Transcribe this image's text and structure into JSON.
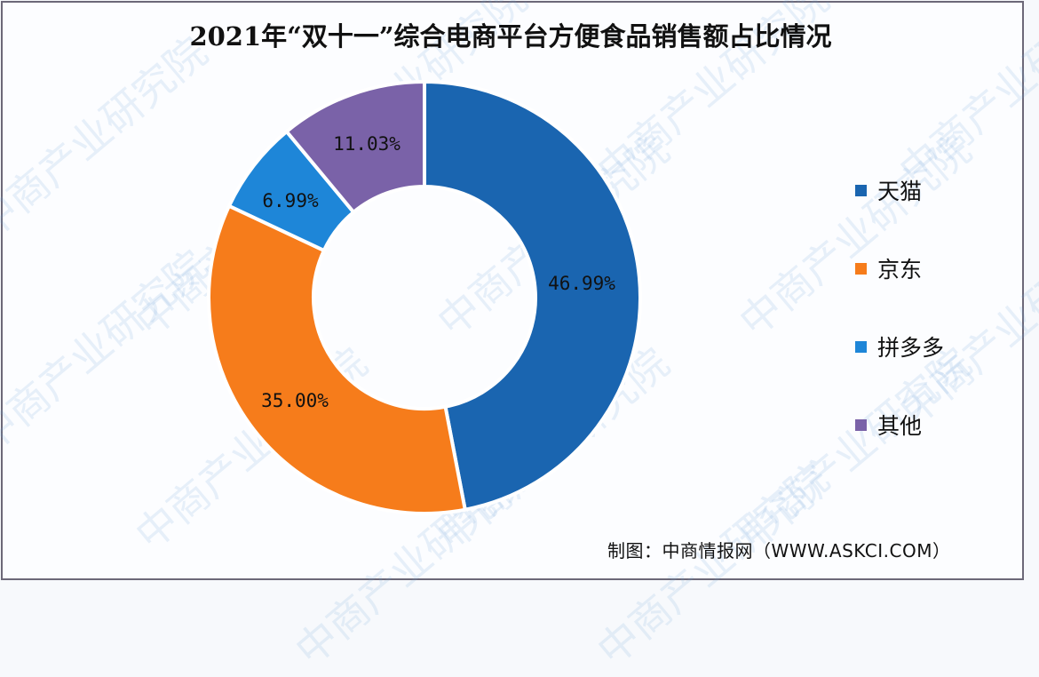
{
  "chart_data": {
    "type": "pie",
    "variant": "donut",
    "title": "2021年“双十一”综合电商平台方便食品销售额占比情况",
    "categories": [
      "天猫",
      "京东",
      "拼多多",
      "其他"
    ],
    "values": [
      46.99,
      35.0,
      6.99,
      11.03
    ],
    "labels": [
      "46.99%",
      "35.00%",
      "6.99%",
      "11.03%"
    ],
    "colors": [
      "#1a65b0",
      "#f67c1b",
      "#1e86d8",
      "#7a62a8"
    ],
    "unit": "%",
    "legend_position": "right",
    "start_angle": "12 o'clock, clockwise"
  },
  "legend": {
    "items": [
      {
        "label": "天猫",
        "color": "#1a65b0"
      },
      {
        "label": "京东",
        "color": "#f67c1b"
      },
      {
        "label": "拼多多",
        "color": "#1e86d8"
      },
      {
        "label": "其他",
        "color": "#7a62a8"
      }
    ]
  },
  "source": "制图：中商情报网（WWW.ASKCI.COM）",
  "watermark": "中商产业研究院"
}
